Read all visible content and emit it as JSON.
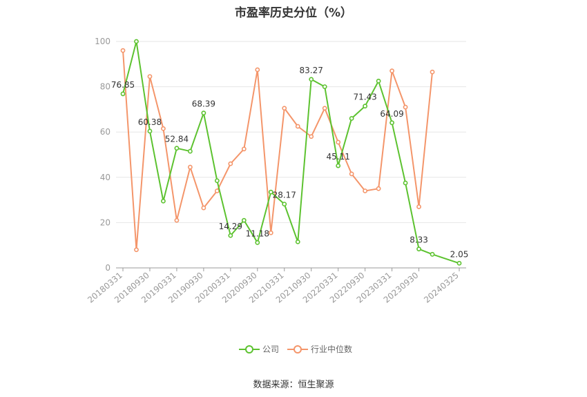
{
  "chart_data": {
    "type": "line",
    "title": "市盈率历史分位（%）",
    "source_label": "数据来源：恒生聚源",
    "ylim": [
      0,
      100
    ],
    "yticks": [
      0,
      20,
      40,
      60,
      80,
      100
    ],
    "grid": true,
    "legend_position": "bottom",
    "x_tick_labels": [
      "20180331",
      "20180930",
      "20190331",
      "20190930",
      "20200331",
      "20200930",
      "20210331",
      "20210930",
      "20220331",
      "20220930",
      "20230331",
      "20230930",
      "20240325"
    ],
    "x_count": 26,
    "x_tick_indices": [
      0,
      2,
      4,
      6,
      8,
      10,
      12,
      14,
      16,
      18,
      20,
      22,
      25
    ],
    "series": [
      {
        "name": "公司",
        "color": "#5cc22f",
        "values": [
          76.85,
          100,
          60.38,
          29.5,
          52.84,
          51.5,
          68.39,
          38.5,
          14.29,
          21,
          11.18,
          33.5,
          28.17,
          11.5,
          83.27,
          80,
          45.11,
          66,
          71.43,
          82.5,
          64.09,
          37.5,
          8.33,
          6,
          2.05
        ],
        "x_index": [
          0,
          1,
          2,
          3,
          4,
          5,
          6,
          7,
          8,
          9,
          10,
          11,
          12,
          13,
          14,
          15,
          16,
          17,
          18,
          19,
          20,
          21,
          22,
          23,
          25
        ],
        "labels": [
          {
            "i": 0,
            "text": "76.85"
          },
          {
            "i": 2,
            "text": "60.38"
          },
          {
            "i": 4,
            "text": "52.84"
          },
          {
            "i": 6,
            "text": "68.39"
          },
          {
            "i": 8,
            "text": "14.29"
          },
          {
            "i": 10,
            "text": "11.18"
          },
          {
            "i": 12,
            "text": "28.17"
          },
          {
            "i": 14,
            "text": "83.27"
          },
          {
            "i": 16,
            "text": "45.11"
          },
          {
            "i": 18,
            "text": "71.43"
          },
          {
            "i": 20,
            "text": "64.09"
          },
          {
            "i": 22,
            "text": "8.33"
          },
          {
            "i": 24,
            "text": "2.05"
          }
        ]
      },
      {
        "name": "行业中位数",
        "color": "#f4956a",
        "values": [
          96,
          8,
          84.5,
          61.5,
          21,
          44.5,
          26.5,
          34,
          46,
          52.5,
          87.5,
          15.5,
          70.5,
          62.5,
          58,
          70.5,
          55.5,
          41.5,
          34,
          35,
          87,
          71,
          27,
          86.5
        ],
        "x_index": [
          0,
          1,
          2,
          3,
          4,
          5,
          6,
          7,
          8,
          9,
          10,
          11,
          12,
          13,
          14,
          15,
          16,
          17,
          18,
          19,
          20,
          21,
          22,
          23
        ]
      }
    ]
  }
}
